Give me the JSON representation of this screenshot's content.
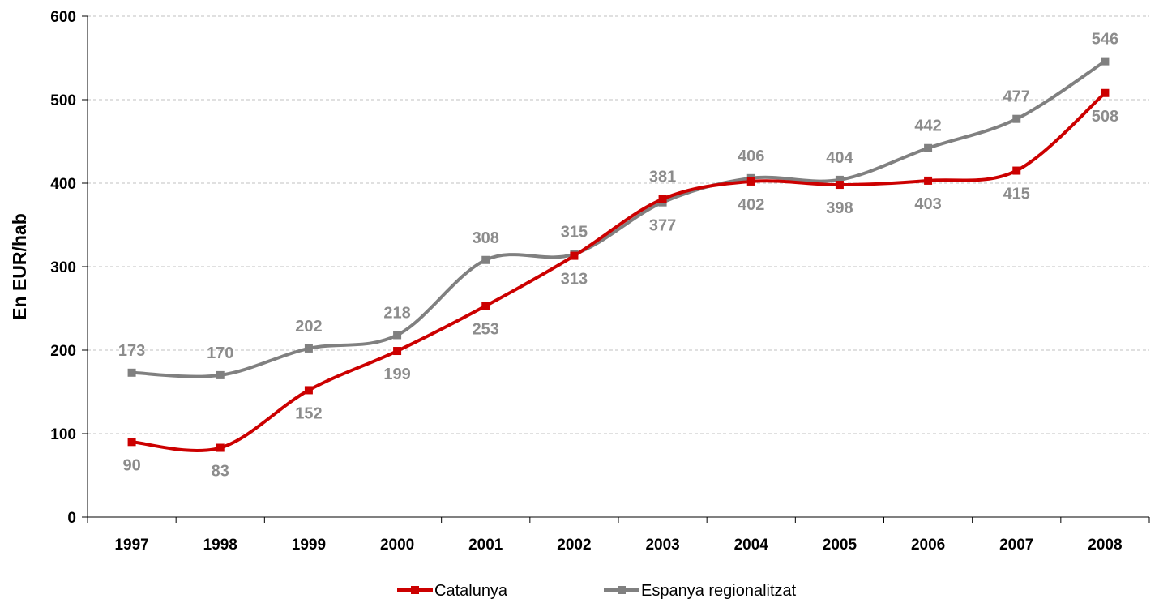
{
  "chart_data": {
    "type": "line",
    "title": "",
    "xlabel": "",
    "ylabel": "En EUR/hab",
    "categories": [
      "1997",
      "1998",
      "1999",
      "2000",
      "2001",
      "2002",
      "2003",
      "2004",
      "2005",
      "2006",
      "2007",
      "2008"
    ],
    "ylim": [
      0,
      600
    ],
    "yticks": [
      0,
      100,
      200,
      300,
      400,
      500,
      600
    ],
    "grid": "horizontal dashed",
    "legend_position": "bottom",
    "series": [
      {
        "name": "Catalunya",
        "color": "#cc0000",
        "values": [
          90,
          83,
          152,
          199,
          253,
          313,
          381,
          402,
          398,
          403,
          415,
          508
        ]
      },
      {
        "name": "Espanya regionalitzat",
        "color": "#808080",
        "values": [
          173,
          170,
          202,
          218,
          308,
          315,
          377,
          406,
          404,
          442,
          477,
          546
        ]
      }
    ],
    "label_color": "#8c8c8c"
  }
}
